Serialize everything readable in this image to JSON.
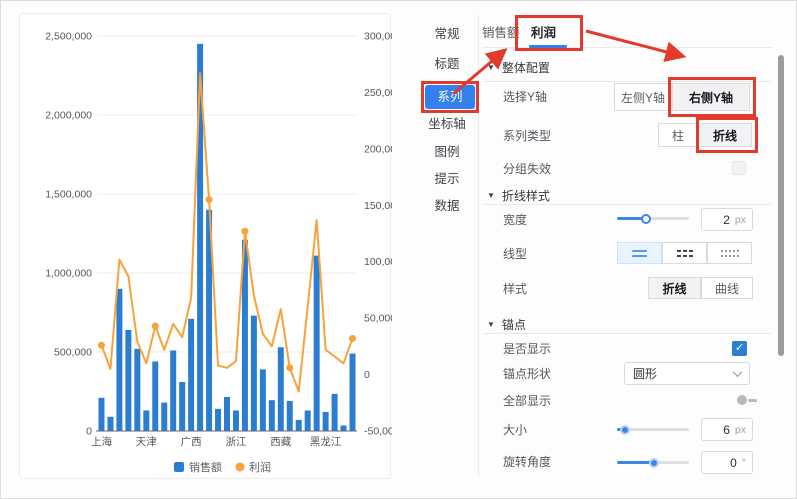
{
  "icons": {
    "check": "✓",
    "triangle": "▼"
  },
  "chart": {
    "type": "bar+line",
    "legend": [
      {
        "name": "销售额",
        "color": "#2b7dd1",
        "shape": "square"
      },
      {
        "name": "利润",
        "color": "#f9a13a",
        "shape": "circle"
      }
    ],
    "x_labels": [
      "上海",
      "天津",
      "广西",
      "浙江",
      "西藏",
      "黑龙江"
    ],
    "x_label_indices": [
      0,
      5,
      10,
      15,
      20,
      25
    ],
    "left_axis": {
      "min": 0,
      "max": 2500000,
      "ticks": [
        "0",
        "500,000",
        "1,000,000",
        "1,500,000",
        "2,000,000",
        "2,500,000"
      ]
    },
    "right_axis": {
      "min": -50000,
      "max": 300000,
      "ticks": [
        "-50,000",
        "0",
        "50,000",
        "100,000",
        "150,000",
        "200,000",
        "250,000",
        "300,000"
      ]
    },
    "series": [
      {
        "name": "销售额",
        "type": "bar",
        "axis": "left",
        "values": [
          210000,
          90000,
          900000,
          640000,
          520000,
          130000,
          440000,
          180000,
          510000,
          310000,
          710000,
          2450000,
          1400000,
          140000,
          215000,
          130000,
          1210000,
          730000,
          390000,
          195000,
          530000,
          190000,
          70000,
          130000,
          1110000,
          120000,
          235000,
          35000,
          490000
        ]
      },
      {
        "name": "利润",
        "type": "line",
        "axis": "right",
        "values": [
          26000,
          5000,
          102000,
          87000,
          29000,
          10000,
          43000,
          22000,
          45000,
          33000,
          68000,
          267000,
          155000,
          8000,
          6000,
          12000,
          127000,
          70000,
          36000,
          25000,
          58000,
          6000,
          -15000,
          60000,
          137000,
          22000,
          16000,
          10000,
          32000
        ],
        "marked_points": [
          0,
          6,
          12,
          16,
          21,
          28
        ]
      }
    ]
  },
  "panel": {
    "nav": {
      "items": [
        {
          "label": "常规"
        },
        {
          "label": "标题"
        },
        {
          "label": "系列",
          "active": true
        },
        {
          "label": "坐标轴"
        },
        {
          "label": "图例"
        },
        {
          "label": "提示"
        },
        {
          "label": "数据"
        }
      ]
    },
    "tabs": {
      "items": [
        {
          "label": "销售额"
        },
        {
          "label": "利润",
          "active": true
        }
      ]
    },
    "overall": {
      "title": "整体配置",
      "select_y": {
        "label": "选择Y轴",
        "options": [
          {
            "label": "左侧Y轴",
            "selected": false
          },
          {
            "label": "右侧Y轴",
            "selected": true
          }
        ]
      },
      "series_type": {
        "label": "系列类型",
        "options": [
          {
            "label": "柱",
            "selected": false
          },
          {
            "label": "折线",
            "selected": true
          }
        ]
      },
      "group_invalid": {
        "label": "分组失效",
        "checked": false
      }
    },
    "line_style": {
      "title": "折线样式",
      "width": {
        "label": "宽度",
        "value": "2",
        "unit": "px"
      },
      "line_type": {
        "label": "线型",
        "selected": "solid",
        "options": [
          "solid",
          "dashed",
          "dotted"
        ]
      },
      "style": {
        "label": "样式",
        "options": [
          {
            "label": "折线",
            "selected": true
          },
          {
            "label": "曲线",
            "selected": false
          }
        ]
      }
    },
    "anchor": {
      "title": "锚点",
      "show": {
        "label": "是否显示",
        "checked": true
      },
      "shape": {
        "label": "锚点形状",
        "value": "圆形"
      },
      "show_all": {
        "label": "全部显示",
        "on": false
      },
      "size": {
        "label": "大小",
        "value": "6",
        "unit": "px"
      },
      "rotate": {
        "label": "旋转角度",
        "value": "0",
        "unit": "°"
      }
    }
  },
  "annotation_color": "#e23a2c"
}
